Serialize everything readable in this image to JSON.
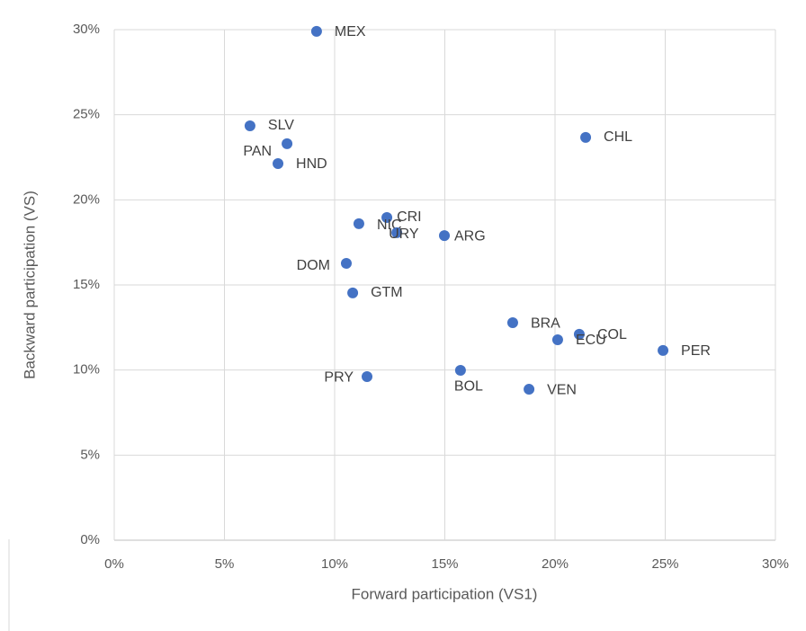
{
  "chart_data": {
    "type": "scatter",
    "x_label": "Forward participation (VS1)",
    "y_label": "Backward participation (VS)",
    "color": "#4472c4",
    "grid": true,
    "labels": [
      "MEX",
      "SLV",
      "PAN",
      "HND",
      "CHL",
      "CRI",
      "NIC",
      "URY",
      "ARG",
      "DOM",
      "GTM",
      "BRA",
      "COL",
      "ECU",
      "PER",
      "BOL",
      "PRY",
      "VEN"
    ],
    "x": [
      9.18,
      6.16,
      7.84,
      7.43,
      21.39,
      12.37,
      11.1,
      12.82,
      14.98,
      10.53,
      10.82,
      18.08,
      21.1,
      20.12,
      24.9,
      15.71,
      11.47,
      18.82
    ],
    "values": [
      29.9,
      24.35,
      23.3,
      22.13,
      23.67,
      18.96,
      18.6,
      18.07,
      17.9,
      16.27,
      14.53,
      12.78,
      12.1,
      11.78,
      11.15,
      9.98,
      9.61,
      8.87
    ],
    "xlim": [
      0,
      30
    ],
    "ylim": [
      0,
      30
    ],
    "xticks": [
      {
        "value": 0,
        "label": "0%"
      },
      {
        "value": 5,
        "label": "5%"
      },
      {
        "value": 10,
        "label": "10%"
      },
      {
        "value": 15,
        "label": "15%"
      },
      {
        "value": 20,
        "label": "20%"
      },
      {
        "value": 25,
        "label": "25%"
      },
      {
        "value": 30,
        "label": "30%"
      }
    ],
    "yticks": [
      {
        "value": 0,
        "label": "0%"
      },
      {
        "value": 5,
        "label": "5%"
      },
      {
        "value": 10,
        "label": "10%"
      },
      {
        "value": 15,
        "label": "15%"
      },
      {
        "value": 20,
        "label": "20%"
      },
      {
        "value": 25,
        "label": "25%"
      },
      {
        "value": 30,
        "label": "30%"
      }
    ]
  }
}
